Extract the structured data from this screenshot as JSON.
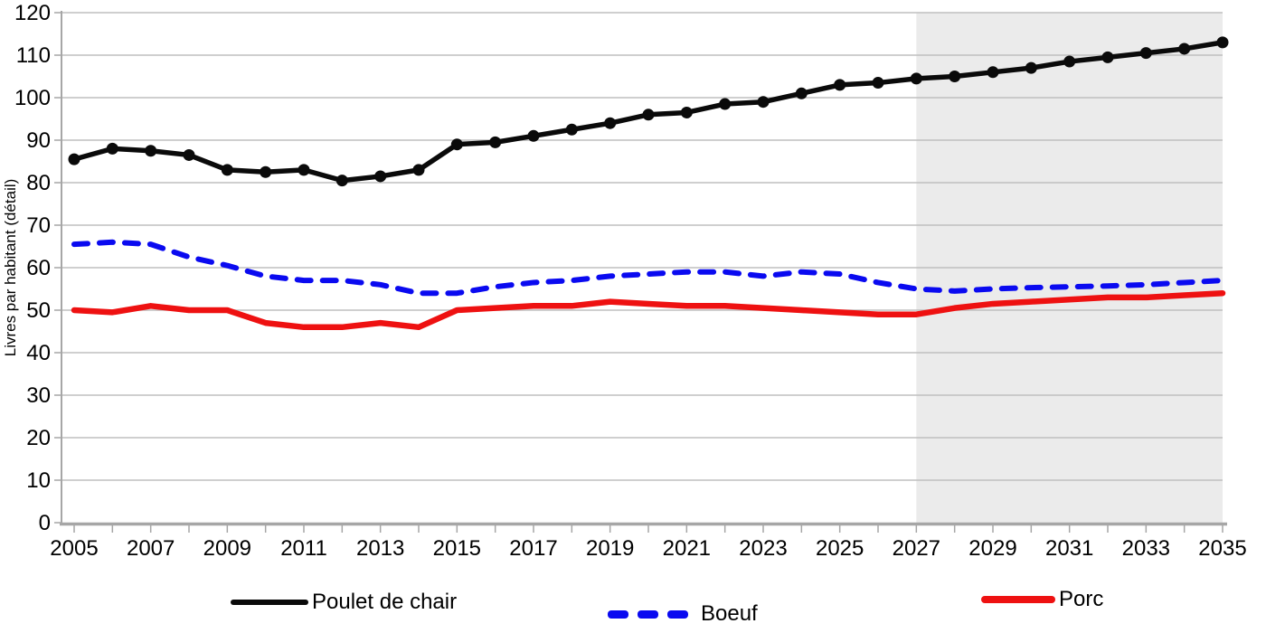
{
  "chart_data": {
    "type": "line",
    "title": "",
    "xlabel": "",
    "ylabel": "Livres par habitant (détail)",
    "ylim": [
      0,
      120
    ],
    "yticks": [
      0,
      10,
      20,
      30,
      40,
      50,
      60,
      70,
      80,
      90,
      100,
      110,
      120
    ],
    "x": [
      2005,
      2006,
      2007,
      2008,
      2009,
      2010,
      2011,
      2012,
      2013,
      2014,
      2015,
      2016,
      2017,
      2018,
      2019,
      2020,
      2021,
      2022,
      2023,
      2024,
      2025,
      2026,
      2027,
      2028,
      2029,
      2030,
      2031,
      2032,
      2033,
      2034,
      2035
    ],
    "xtick_labels": [
      "2005",
      "2007",
      "2009",
      "2011",
      "2013",
      "2015",
      "2017",
      "2019",
      "2021",
      "2023",
      "2025",
      "2027",
      "2029",
      "2031",
      "2033",
      "2035"
    ],
    "grid": true,
    "legend_position": "bottom",
    "forecast": {
      "start_year": 2027,
      "end_year": 2035,
      "color": "#ebebeb"
    },
    "series": [
      {
        "name": "Poulet de chair",
        "color": "#0a0a0a",
        "style": "solid",
        "marker": "circle",
        "width": 5.5,
        "values": [
          85.5,
          88,
          87.5,
          86.5,
          83,
          82.5,
          83,
          80.5,
          81.5,
          83,
          89,
          89.5,
          91,
          92.5,
          94,
          96,
          96.5,
          98.5,
          99,
          101,
          103,
          103.5,
          104.5,
          105,
          106,
          107,
          108.5,
          109.5,
          110.5,
          111.5,
          113
        ]
      },
      {
        "name": "Boeuf",
        "color": "#0a0af0",
        "style": "dashed",
        "marker": "none",
        "width": 6,
        "values": [
          65.5,
          66,
          65.5,
          62.5,
          60.5,
          58,
          57,
          57,
          56,
          54,
          54,
          55.5,
          56.5,
          57,
          58,
          58.5,
          59,
          59,
          58,
          59,
          58.5,
          56.5,
          55,
          54.5,
          55,
          55.3,
          55.5,
          55.7,
          56,
          56.5,
          57
        ]
      },
      {
        "name": "Porc",
        "color": "#ee1111",
        "style": "solid",
        "marker": "none",
        "width": 6.5,
        "values": [
          50,
          49.5,
          51,
          50,
          50,
          47,
          46,
          46,
          47,
          46,
          50,
          50.5,
          51,
          51,
          52,
          51.5,
          51,
          51,
          50.5,
          50,
          49.5,
          49,
          49,
          50.5,
          51.5,
          52,
          52.5,
          53,
          53,
          53.5,
          54
        ]
      }
    ],
    "colors": {
      "grid": "#bfbfbf",
      "axis": "#a6a6a6",
      "text": "#000000"
    }
  }
}
